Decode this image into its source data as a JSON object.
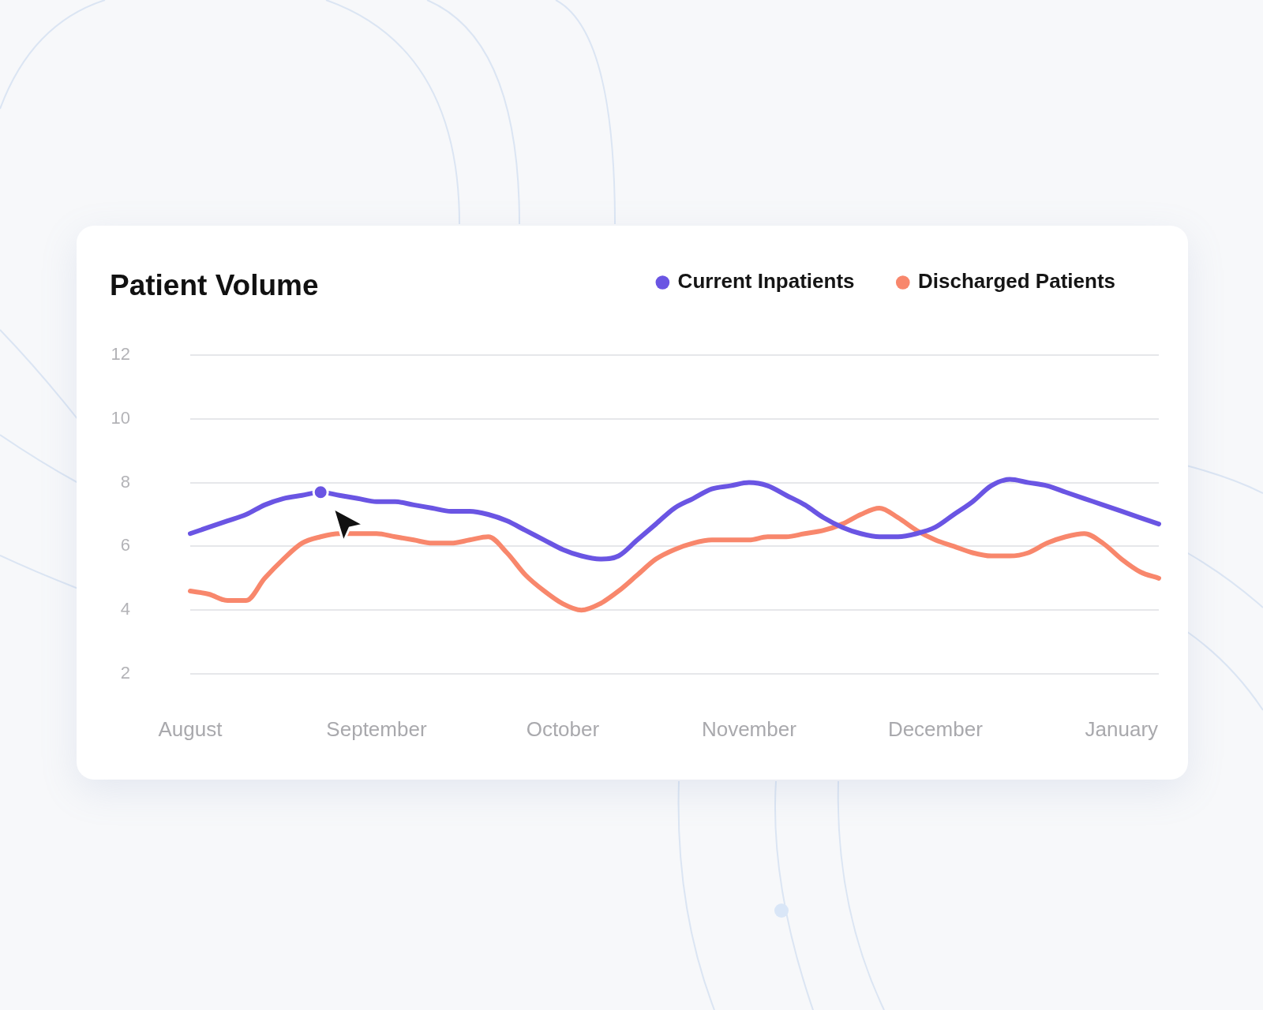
{
  "chart_data": {
    "type": "line",
    "title": "Patient Volume",
    "categories": [
      "August",
      null,
      null,
      null,
      null,
      null,
      null,
      null,
      null,
      null,
      "September",
      null,
      null,
      null,
      null,
      null,
      null,
      null,
      null,
      null,
      "October",
      null,
      null,
      null,
      null,
      null,
      null,
      null,
      null,
      null,
      "November",
      null,
      null,
      null,
      null,
      null,
      null,
      null,
      null,
      null,
      "December",
      null,
      null,
      null,
      null,
      null,
      null,
      null,
      null,
      null,
      "January",
      null,
      null
    ],
    "ylim": [
      2,
      12
    ],
    "yticks": [
      2,
      4,
      6,
      8,
      10,
      12
    ],
    "grid": "y",
    "legend": "top right",
    "series": [
      {
        "name": "Current Inpatients",
        "color": "#6a55e3",
        "values": [
          6.4,
          6.6,
          6.8,
          7.0,
          7.3,
          7.5,
          7.6,
          7.7,
          7.6,
          7.5,
          7.4,
          7.4,
          7.3,
          7.2,
          7.1,
          7.1,
          7.0,
          6.8,
          6.5,
          6.2,
          5.9,
          5.7,
          5.6,
          5.7,
          6.2,
          6.7,
          7.2,
          7.5,
          7.8,
          7.9,
          8.0,
          7.9,
          7.6,
          7.3,
          6.9,
          6.6,
          6.4,
          6.3,
          6.3,
          6.4,
          6.6,
          7.0,
          7.4,
          7.9,
          8.1,
          8.0,
          7.9,
          7.7,
          7.5,
          7.3,
          7.1,
          6.9,
          6.7
        ]
      },
      {
        "name": "Discharged Patients",
        "color": "#f8876c",
        "values": [
          4.6,
          4.5,
          4.3,
          4.3,
          5.0,
          5.6,
          6.1,
          6.3,
          6.4,
          6.4,
          6.4,
          6.3,
          6.2,
          6.1,
          6.1,
          6.2,
          6.3,
          5.8,
          5.1,
          4.6,
          4.2,
          4.0,
          4.2,
          4.6,
          5.1,
          5.6,
          5.9,
          6.1,
          6.2,
          6.2,
          6.2,
          6.3,
          6.3,
          6.4,
          6.5,
          6.7,
          7.0,
          7.2,
          6.9,
          6.5,
          6.2,
          6.0,
          5.8,
          5.7,
          5.7,
          5.8,
          6.1,
          6.3,
          6.4,
          6.1,
          5.6,
          5.2,
          5.0
        ]
      },
      {
        "type": "scatter",
        "color": "#6a55e3",
        "marker": "circle",
        "values": [
          null,
          null,
          null,
          null,
          null,
          null,
          null,
          7.7,
          null,
          null,
          null,
          null,
          null,
          null,
          null,
          null,
          null,
          null,
          null,
          null,
          null,
          null,
          null,
          null,
          null,
          null,
          null,
          null,
          null,
          null,
          null,
          null,
          null,
          null,
          null,
          null,
          null,
          null,
          null,
          null,
          null,
          null,
          null,
          null,
          null,
          null,
          null,
          null,
          null,
          null,
          null,
          null,
          null
        ]
      }
    ]
  }
}
